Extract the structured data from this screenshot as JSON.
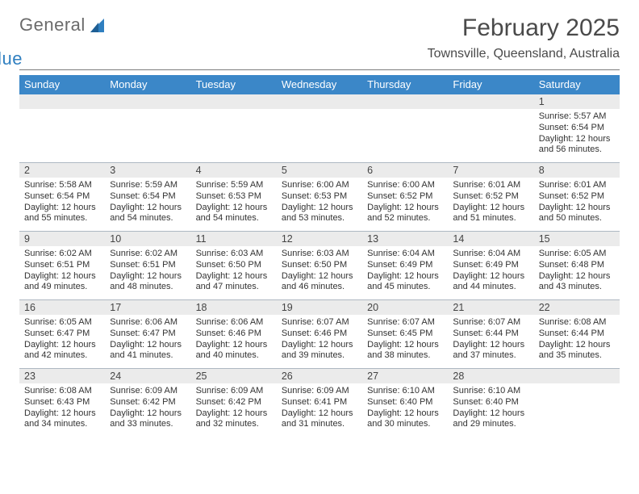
{
  "brand": {
    "general": "General",
    "blue": "Blue"
  },
  "title": "February 2025",
  "location": "Townsville, Queensland, Australia",
  "colors": {
    "header_bg": "#3b87c8",
    "header_fg": "#ffffff",
    "daynum_bg": "#ebebeb",
    "rule": "#7a7a7a",
    "week_border": "#aeb8c2",
    "text": "#333333",
    "title": "#4a4a4a",
    "logo_gray": "#6b6b6b",
    "logo_blue": "#2f7fc0",
    "page_bg": "#ffffff"
  },
  "typography": {
    "title_fontsize": 30,
    "location_fontsize": 16,
    "dow_fontsize": 13,
    "daynum_fontsize": 12.5,
    "cell_fontsize": 11
  },
  "dow": [
    "Sunday",
    "Monday",
    "Tuesday",
    "Wednesday",
    "Thursday",
    "Friday",
    "Saturday"
  ],
  "weeks": [
    [
      {
        "n": "",
        "sunrise": "",
        "sunset": "",
        "daylight": ""
      },
      {
        "n": "",
        "sunrise": "",
        "sunset": "",
        "daylight": ""
      },
      {
        "n": "",
        "sunrise": "",
        "sunset": "",
        "daylight": ""
      },
      {
        "n": "",
        "sunrise": "",
        "sunset": "",
        "daylight": ""
      },
      {
        "n": "",
        "sunrise": "",
        "sunset": "",
        "daylight": ""
      },
      {
        "n": "",
        "sunrise": "",
        "sunset": "",
        "daylight": ""
      },
      {
        "n": "1",
        "sunrise": "Sunrise: 5:57 AM",
        "sunset": "Sunset: 6:54 PM",
        "daylight": "Daylight: 12 hours and 56 minutes."
      }
    ],
    [
      {
        "n": "2",
        "sunrise": "Sunrise: 5:58 AM",
        "sunset": "Sunset: 6:54 PM",
        "daylight": "Daylight: 12 hours and 55 minutes."
      },
      {
        "n": "3",
        "sunrise": "Sunrise: 5:59 AM",
        "sunset": "Sunset: 6:54 PM",
        "daylight": "Daylight: 12 hours and 54 minutes."
      },
      {
        "n": "4",
        "sunrise": "Sunrise: 5:59 AM",
        "sunset": "Sunset: 6:53 PM",
        "daylight": "Daylight: 12 hours and 54 minutes."
      },
      {
        "n": "5",
        "sunrise": "Sunrise: 6:00 AM",
        "sunset": "Sunset: 6:53 PM",
        "daylight": "Daylight: 12 hours and 53 minutes."
      },
      {
        "n": "6",
        "sunrise": "Sunrise: 6:00 AM",
        "sunset": "Sunset: 6:52 PM",
        "daylight": "Daylight: 12 hours and 52 minutes."
      },
      {
        "n": "7",
        "sunrise": "Sunrise: 6:01 AM",
        "sunset": "Sunset: 6:52 PM",
        "daylight": "Daylight: 12 hours and 51 minutes."
      },
      {
        "n": "8",
        "sunrise": "Sunrise: 6:01 AM",
        "sunset": "Sunset: 6:52 PM",
        "daylight": "Daylight: 12 hours and 50 minutes."
      }
    ],
    [
      {
        "n": "9",
        "sunrise": "Sunrise: 6:02 AM",
        "sunset": "Sunset: 6:51 PM",
        "daylight": "Daylight: 12 hours and 49 minutes."
      },
      {
        "n": "10",
        "sunrise": "Sunrise: 6:02 AM",
        "sunset": "Sunset: 6:51 PM",
        "daylight": "Daylight: 12 hours and 48 minutes."
      },
      {
        "n": "11",
        "sunrise": "Sunrise: 6:03 AM",
        "sunset": "Sunset: 6:50 PM",
        "daylight": "Daylight: 12 hours and 47 minutes."
      },
      {
        "n": "12",
        "sunrise": "Sunrise: 6:03 AM",
        "sunset": "Sunset: 6:50 PM",
        "daylight": "Daylight: 12 hours and 46 minutes."
      },
      {
        "n": "13",
        "sunrise": "Sunrise: 6:04 AM",
        "sunset": "Sunset: 6:49 PM",
        "daylight": "Daylight: 12 hours and 45 minutes."
      },
      {
        "n": "14",
        "sunrise": "Sunrise: 6:04 AM",
        "sunset": "Sunset: 6:49 PM",
        "daylight": "Daylight: 12 hours and 44 minutes."
      },
      {
        "n": "15",
        "sunrise": "Sunrise: 6:05 AM",
        "sunset": "Sunset: 6:48 PM",
        "daylight": "Daylight: 12 hours and 43 minutes."
      }
    ],
    [
      {
        "n": "16",
        "sunrise": "Sunrise: 6:05 AM",
        "sunset": "Sunset: 6:47 PM",
        "daylight": "Daylight: 12 hours and 42 minutes."
      },
      {
        "n": "17",
        "sunrise": "Sunrise: 6:06 AM",
        "sunset": "Sunset: 6:47 PM",
        "daylight": "Daylight: 12 hours and 41 minutes."
      },
      {
        "n": "18",
        "sunrise": "Sunrise: 6:06 AM",
        "sunset": "Sunset: 6:46 PM",
        "daylight": "Daylight: 12 hours and 40 minutes."
      },
      {
        "n": "19",
        "sunrise": "Sunrise: 6:07 AM",
        "sunset": "Sunset: 6:46 PM",
        "daylight": "Daylight: 12 hours and 39 minutes."
      },
      {
        "n": "20",
        "sunrise": "Sunrise: 6:07 AM",
        "sunset": "Sunset: 6:45 PM",
        "daylight": "Daylight: 12 hours and 38 minutes."
      },
      {
        "n": "21",
        "sunrise": "Sunrise: 6:07 AM",
        "sunset": "Sunset: 6:44 PM",
        "daylight": "Daylight: 12 hours and 37 minutes."
      },
      {
        "n": "22",
        "sunrise": "Sunrise: 6:08 AM",
        "sunset": "Sunset: 6:44 PM",
        "daylight": "Daylight: 12 hours and 35 minutes."
      }
    ],
    [
      {
        "n": "23",
        "sunrise": "Sunrise: 6:08 AM",
        "sunset": "Sunset: 6:43 PM",
        "daylight": "Daylight: 12 hours and 34 minutes."
      },
      {
        "n": "24",
        "sunrise": "Sunrise: 6:09 AM",
        "sunset": "Sunset: 6:42 PM",
        "daylight": "Daylight: 12 hours and 33 minutes."
      },
      {
        "n": "25",
        "sunrise": "Sunrise: 6:09 AM",
        "sunset": "Sunset: 6:42 PM",
        "daylight": "Daylight: 12 hours and 32 minutes."
      },
      {
        "n": "26",
        "sunrise": "Sunrise: 6:09 AM",
        "sunset": "Sunset: 6:41 PM",
        "daylight": "Daylight: 12 hours and 31 minutes."
      },
      {
        "n": "27",
        "sunrise": "Sunrise: 6:10 AM",
        "sunset": "Sunset: 6:40 PM",
        "daylight": "Daylight: 12 hours and 30 minutes."
      },
      {
        "n": "28",
        "sunrise": "Sunrise: 6:10 AM",
        "sunset": "Sunset: 6:40 PM",
        "daylight": "Daylight: 12 hours and 29 minutes."
      },
      {
        "n": "",
        "sunrise": "",
        "sunset": "",
        "daylight": ""
      }
    ]
  ]
}
